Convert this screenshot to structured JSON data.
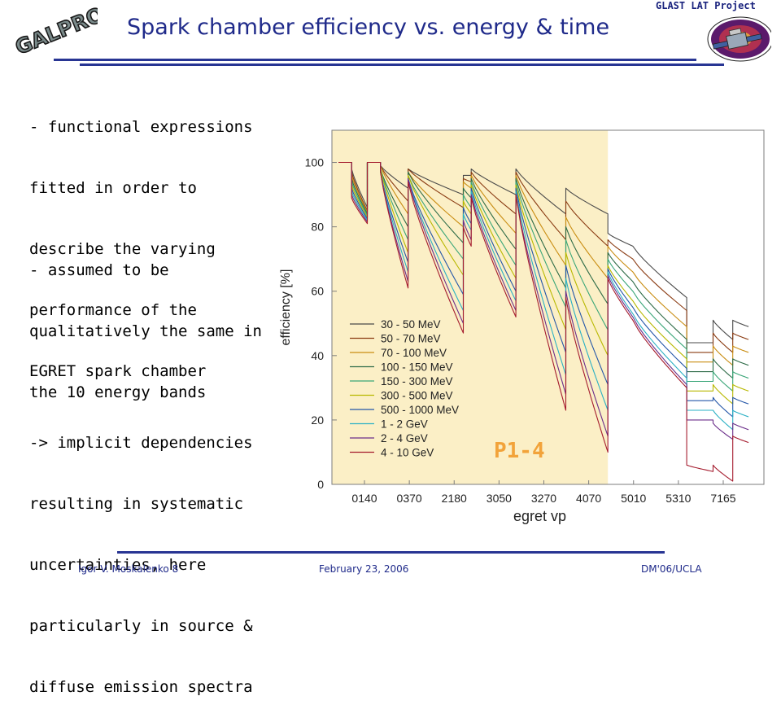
{
  "header": {
    "title": "Spark chamber efficiency vs. energy & time",
    "logo_text": "GALPROP",
    "project_label": "GLAST LAT Project"
  },
  "bullets": [
    {
      "lines": [
        "- functional expressions",
        "fitted in order to",
        "describe the varying",
        "performance of the",
        "EGRET spark chamber"
      ]
    },
    {
      "lines": [
        "- assumed to be",
        "qualitatively the same in",
        "the 10 energy bands"
      ]
    },
    {
      "lines": [
        "-> implicit dependencies",
        "resulting in systematic",
        "uncertainties, here",
        "particularly in source &",
        "diffuse emission spectra"
      ]
    }
  ],
  "footer": {
    "author": "Igor V. Moskalenko  8",
    "date": "February 23, 2006",
    "venue": "DM'06/UCLA"
  },
  "colors": {
    "title": "#1f2a8a",
    "rule": "#283593",
    "shade": "#fbefc6",
    "annotation": "#f2a33a"
  },
  "chart_data": {
    "type": "line",
    "xlabel": "egret vp",
    "ylabel": "efficiency  [%]",
    "ylim": [
      0,
      110
    ],
    "yticks": [
      0,
      20,
      40,
      60,
      80,
      100
    ],
    "xticks": [
      "0140",
      "0370",
      "2180",
      "3050",
      "3270",
      "4070",
      "5010",
      "5310",
      "7165"
    ],
    "annotation": "P1-4",
    "shaded_region_end": 20.5,
    "legend": {
      "position": "bottom-left",
      "entries": [
        "30 - 50 MeV",
        "50 - 70 MeV",
        "70 - 100 MeV",
        "100 - 150 MeV",
        "150 - 300 MeV",
        "300 - 500 MeV",
        "500 - 1000 MeV",
        "1 - 2 GeV",
        "2 - 4 GeV",
        "4 - 10 GeV"
      ]
    },
    "series_colors": [
      "#4a4a4a",
      "#8a3b12",
      "#c98d12",
      "#2e6b47",
      "#3aa678",
      "#b8b800",
      "#2456a8",
      "#2ab0c4",
      "#6b2e8a",
      "#a51c2e"
    ],
    "bottom": [
      81,
      61,
      47,
      46,
      55,
      40,
      21,
      18,
      17,
      13
    ],
    "top": [
      88,
      70,
      63,
      63,
      71,
      66,
      55,
      50,
      47,
      45
    ],
    "segments": [
      {
        "x0": 0,
        "x1": 1,
        "start": [
          100,
          100,
          100,
          100,
          100,
          100,
          100,
          100,
          100,
          100
        ],
        "end": [
          100,
          100,
          100,
          100,
          100,
          100,
          100,
          100,
          100,
          100
        ]
      },
      {
        "x0": 1,
        "x1": 2.2,
        "start": [
          98,
          97,
          96,
          95,
          94,
          93,
          92,
          91,
          90,
          89
        ],
        "end": [
          86,
          85,
          84.5,
          84,
          83.5,
          83,
          82.5,
          82,
          81.5,
          81
        ]
      },
      {
        "x0": 2.2,
        "x1": 3.2,
        "start": [
          100,
          100,
          100,
          100,
          100,
          100,
          100,
          100,
          100,
          100
        ],
        "end": [
          100,
          100,
          100,
          100,
          100,
          100,
          100,
          100,
          100,
          100
        ]
      },
      {
        "x0": 3.2,
        "x1": 5.3,
        "start": [
          99,
          99,
          99,
          98,
          98,
          98,
          97,
          97,
          97,
          97
        ],
        "end": [
          92,
          88,
          84,
          80,
          76,
          72,
          69,
          66,
          63,
          61
        ]
      },
      {
        "x0": 5.3,
        "x1": 9.5,
        "start": [
          98,
          98,
          97,
          97,
          96,
          96,
          95,
          95,
          95,
          94
        ],
        "end": [
          90,
          86,
          80,
          75,
          70,
          65,
          59,
          54,
          50,
          47
        ]
      },
      {
        "x0": 9.5,
        "x1": 10.1,
        "start": [
          96,
          95,
          94,
          92,
          90,
          88,
          86,
          84,
          82,
          80
        ],
        "end": [
          96,
          94,
          92,
          89,
          86,
          84,
          81,
          79,
          76,
          74
        ]
      },
      {
        "x0": 10.1,
        "x1": 13.5,
        "start": [
          98,
          97,
          96,
          95,
          94,
          93,
          92,
          91,
          90,
          89
        ],
        "end": [
          90,
          84,
          78,
          73,
          68,
          64,
          60,
          57,
          54,
          52
        ]
      },
      {
        "x0": 13.5,
        "x1": 17.3,
        "start": [
          98,
          97,
          96,
          95,
          94,
          93,
          92,
          91,
          90,
          90
        ],
        "end": [
          84,
          76,
          68,
          61,
          55,
          48,
          41,
          34,
          28,
          23
        ]
      },
      {
        "x0": 17.3,
        "x1": 20.5,
        "start": [
          92,
          88,
          83,
          80,
          76,
          72,
          68,
          64,
          60,
          58
        ],
        "end": [
          84,
          74,
          64,
          56,
          48,
          40,
          31,
          23,
          15,
          10
        ]
      },
      {
        "x0": 20.5,
        "x1": 22.4,
        "start": [
          78,
          76,
          74,
          72,
          70,
          68,
          67,
          66,
          65,
          64
        ],
        "end": [
          74,
          70,
          66,
          63,
          60,
          57,
          55,
          53,
          52,
          51
        ]
      },
      {
        "x0": 22.4,
        "x1": 26.5,
        "start": [
          74,
          70,
          66,
          63,
          60,
          57,
          55,
          53,
          52,
          51
        ],
        "end": [
          58,
          54,
          49,
          45,
          42,
          39,
          36,
          33,
          31,
          30
        ]
      },
      {
        "x0": 26.5,
        "x1": 28.5,
        "start": [
          44,
          41,
          38,
          35,
          32,
          29,
          26,
          23,
          20,
          6
        ],
        "end": [
          44,
          41,
          38,
          35,
          32,
          29,
          26,
          23,
          20,
          4
        ]
      },
      {
        "x0": 28.5,
        "x1": 30,
        "start": [
          51,
          47,
          43,
          39,
          35,
          31,
          27,
          23,
          19,
          6
        ],
        "end": [
          45,
          41,
          37,
          33,
          29,
          25,
          21,
          17,
          14,
          1
        ]
      },
      {
        "x0": 30,
        "x1": 31.2,
        "start": [
          51,
          47,
          43,
          39,
          35,
          31,
          27,
          23,
          19,
          15
        ],
        "end": [
          49,
          45,
          41,
          37,
          33,
          29,
          25,
          21,
          17,
          13
        ]
      }
    ]
  }
}
